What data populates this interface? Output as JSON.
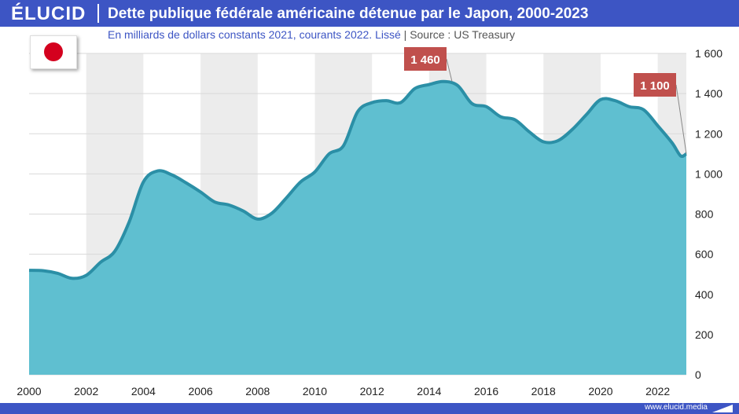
{
  "header": {
    "brand": "ÉLUCID",
    "title": "Dette publique fédérale américaine détenue par le Japon, 2000-2023"
  },
  "subtitle": {
    "text": "En milliards de dollars constants 2021, courants 2022. Lissé",
    "separator": "|",
    "source": "Source : US Treasury"
  },
  "footer": {
    "url": "www.elucid.media"
  },
  "colors": {
    "brand": "#3d55c4",
    "area_fill": "#5fbfd0",
    "line": "#2b8fa6",
    "callout": "#c0504d",
    "band": "#ececec"
  },
  "chart_data": {
    "type": "area",
    "title": "Dette publique fédérale américaine détenue par le Japon, 2000-2023",
    "subtitle": "En milliards de dollars constants 2021, courants 2022. Lissé",
    "xlabel": "",
    "ylabel": "",
    "xlim": [
      2000,
      2023
    ],
    "ylim": [
      0,
      1600
    ],
    "y_axis_side": "right",
    "x_ticks": [
      "2000",
      "2002",
      "2004",
      "2006",
      "2008",
      "2010",
      "2012",
      "2014",
      "2016",
      "2018",
      "2020",
      "2022"
    ],
    "y_ticks": [
      "0",
      "200",
      "400",
      "600",
      "800",
      "1 000",
      "1 200",
      "1 400",
      "1 600"
    ],
    "grid": true,
    "series": [
      {
        "values": [
          [
            2000.0,
            520
          ],
          [
            2000.5,
            518
          ],
          [
            2001.0,
            505
          ],
          [
            2001.5,
            480
          ],
          [
            2002.0,
            495
          ],
          [
            2002.5,
            560
          ],
          [
            2003.0,
            615
          ],
          [
            2003.5,
            760
          ],
          [
            2004.0,
            960
          ],
          [
            2004.5,
            1015
          ],
          [
            2005.0,
            995
          ],
          [
            2005.5,
            955
          ],
          [
            2006.0,
            910
          ],
          [
            2006.5,
            860
          ],
          [
            2007.0,
            845
          ],
          [
            2007.5,
            815
          ],
          [
            2008.0,
            775
          ],
          [
            2008.5,
            805
          ],
          [
            2009.0,
            880
          ],
          [
            2009.5,
            960
          ],
          [
            2010.0,
            1010
          ],
          [
            2010.5,
            1100
          ],
          [
            2011.0,
            1140
          ],
          [
            2011.5,
            1310
          ],
          [
            2012.0,
            1355
          ],
          [
            2012.5,
            1365
          ],
          [
            2013.0,
            1355
          ],
          [
            2013.5,
            1425
          ],
          [
            2014.0,
            1445
          ],
          [
            2014.5,
            1460
          ],
          [
            2015.0,
            1440
          ],
          [
            2015.5,
            1350
          ],
          [
            2016.0,
            1335
          ],
          [
            2016.5,
            1285
          ],
          [
            2017.0,
            1270
          ],
          [
            2017.5,
            1210
          ],
          [
            2018.0,
            1160
          ],
          [
            2018.5,
            1165
          ],
          [
            2019.0,
            1220
          ],
          [
            2019.5,
            1295
          ],
          [
            2020.0,
            1370
          ],
          [
            2020.5,
            1365
          ],
          [
            2021.0,
            1335
          ],
          [
            2021.5,
            1320
          ],
          [
            2022.0,
            1240
          ],
          [
            2022.5,
            1155
          ],
          [
            2022.8,
            1090
          ],
          [
            2023.0,
            1100
          ]
        ]
      }
    ],
    "annotations": [
      {
        "label": "1 460",
        "x": 2014.8,
        "y": 1460
      },
      {
        "label": "1 100",
        "x": 2023.0,
        "y": 1100
      }
    ]
  }
}
